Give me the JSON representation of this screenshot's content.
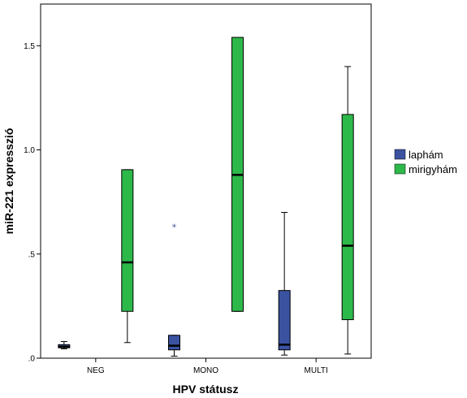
{
  "chart_data": {
    "type": "boxplot",
    "xlabel": "HPV státusz",
    "ylabel": "miR-221 expresszió",
    "categories": [
      "NEG",
      "MONO",
      "MULTI"
    ],
    "ylim": [
      0,
      1.7
    ],
    "yticks": [
      0,
      0.5,
      1.0,
      1.5
    ],
    "ytick_labels": [
      ".0",
      ".5",
      "1.0",
      "1.5"
    ],
    "grid": false,
    "legend_position": "right",
    "series": [
      {
        "name": "laphám",
        "color": "#3a52a0",
        "boxes": [
          {
            "category": "NEG",
            "min": 0.045,
            "q1": 0.05,
            "median": 0.055,
            "q3": 0.065,
            "max": 0.08,
            "outliers": []
          },
          {
            "category": "MONO",
            "min": 0.01,
            "q1": 0.04,
            "median": 0.06,
            "q3": 0.11,
            "max": 0.11,
            "outliers": [
              0.63
            ]
          },
          {
            "category": "MULTI",
            "min": 0.015,
            "q1": 0.04,
            "median": 0.065,
            "q3": 0.325,
            "max": 0.7,
            "outliers": []
          }
        ]
      },
      {
        "name": "mirigyhám",
        "color": "#2db84a",
        "boxes": [
          {
            "category": "NEG",
            "min": 0.075,
            "q1": 0.225,
            "median": 0.46,
            "q3": 0.905,
            "max": 0.905,
            "outliers": []
          },
          {
            "category": "MONO",
            "min": 0.225,
            "q1": 0.225,
            "median": 0.88,
            "q3": 1.54,
            "max": 1.54,
            "outliers": []
          },
          {
            "category": "MULTI",
            "min": 0.02,
            "q1": 0.185,
            "median": 0.54,
            "q3": 1.17,
            "max": 1.4,
            "outliers": []
          }
        ]
      }
    ]
  }
}
